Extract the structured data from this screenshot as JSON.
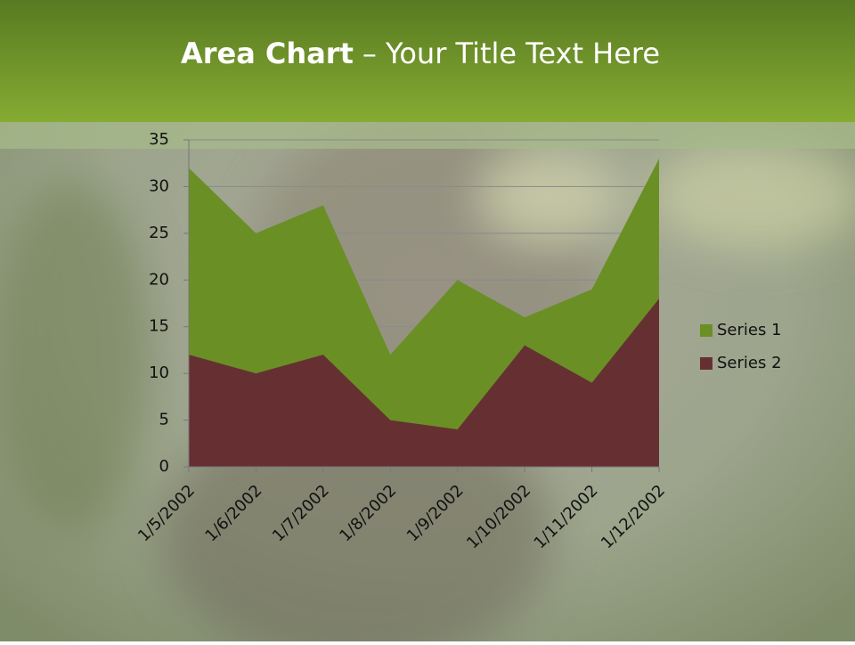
{
  "chart_data": {
    "type": "area",
    "title_bold": "Area Chart",
    "title_rest": "– Your Title Text Here",
    "categories": [
      "1/5/2002",
      "1/6/2002",
      "1/7/2002",
      "1/8/2002",
      "1/9/2002",
      "1/10/2002",
      "1/11/2002",
      "1/12/2002"
    ],
    "series": [
      {
        "name": "Series 1",
        "color": "#6a8f25",
        "values": [
          32,
          25,
          28,
          12,
          20,
          16,
          19,
          33
        ]
      },
      {
        "name": "Series 2",
        "color": "#663033",
        "values": [
          12,
          10,
          12,
          5,
          4,
          13,
          9,
          18
        ]
      }
    ],
    "ylim": [
      0,
      35
    ],
    "yticks": [
      0,
      5,
      10,
      15,
      20,
      25,
      30,
      35
    ],
    "grid": true,
    "legend": "right"
  }
}
